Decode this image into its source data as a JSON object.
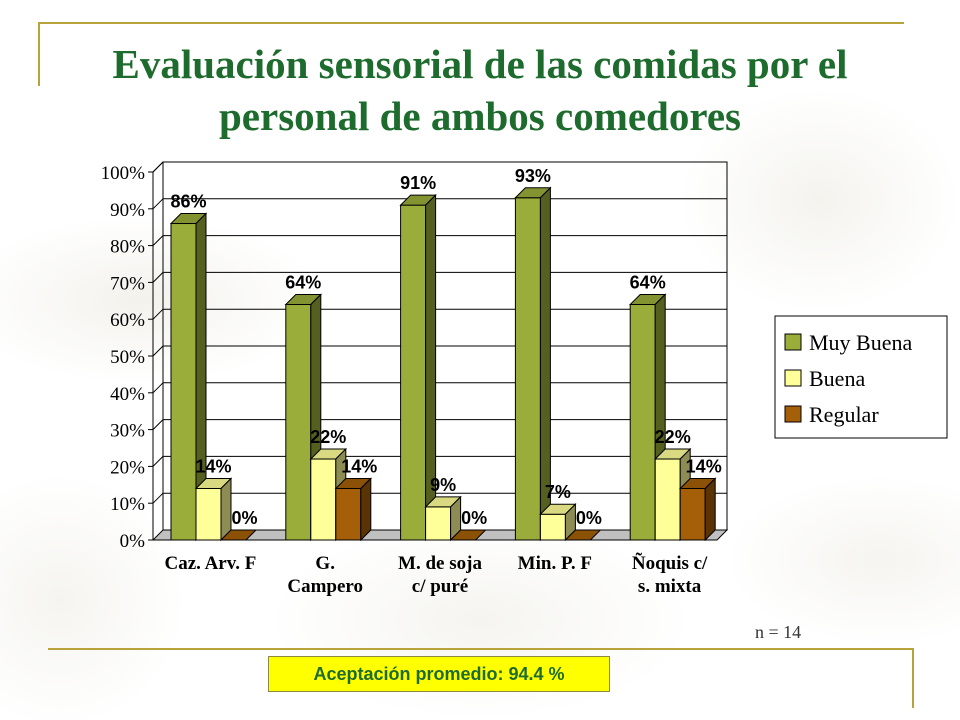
{
  "title": "Evaluación sensorial  de las comidas por el personal de ambos comedores",
  "chart_data": {
    "type": "bar",
    "categories": [
      "Caz. Arv. F",
      "G. Campero",
      "M. de soja c/ puré",
      "Min. P. F",
      "Ñoquis c/ s. mixta"
    ],
    "category_lines": [
      [
        "Caz. Arv. F"
      ],
      [
        "G.",
        "Campero"
      ],
      [
        "M. de soja",
        "c/ puré"
      ],
      [
        "Min. P. F"
      ],
      [
        "Ñoquis c/",
        "s. mixta"
      ]
    ],
    "series": [
      {
        "name": "Muy Buena",
        "values": [
          86,
          64,
          91,
          93,
          64
        ],
        "labels": [
          "86%",
          "64%",
          "91%",
          "93%",
          "64%"
        ],
        "color": "#9aad3a"
      },
      {
        "name": "Buena",
        "values": [
          14,
          22,
          9,
          7,
          22
        ],
        "labels": [
          "14%",
          "22%",
          "9%",
          "7%",
          "22%"
        ],
        "color": "#ffff99"
      },
      {
        "name": "Regular",
        "values": [
          0,
          14,
          0,
          0,
          14
        ],
        "labels": [
          "0%",
          "14%",
          "0%",
          "0%",
          "14%"
        ],
        "color": "#a45f08"
      }
    ],
    "y_ticks": [
      "0%",
      "10%",
      "20%",
      "30%",
      "40%",
      "50%",
      "60%",
      "70%",
      "80%",
      "90%",
      "100%"
    ],
    "ylim": [
      0,
      100
    ],
    "grid": true,
    "legend_position": "right"
  },
  "sample_note": "n = 14",
  "acceptance": "Aceptación promedio: 94.4 %"
}
